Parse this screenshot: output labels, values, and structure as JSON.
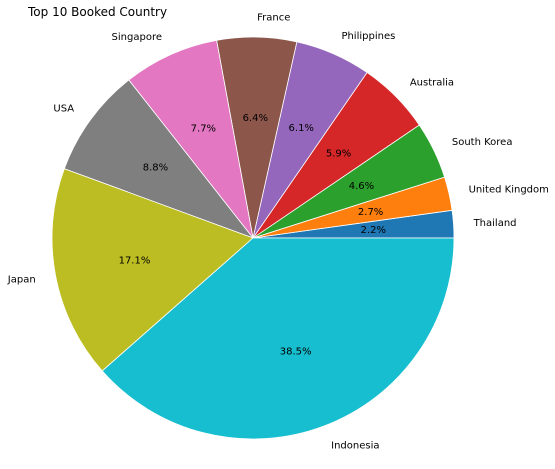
{
  "chart_data": {
    "type": "pie",
    "title": "Top 10 Booked Country",
    "slices": [
      {
        "label": "Thailand",
        "value": 2.2,
        "pct_label": "2.2%",
        "color": "#1f77b4"
      },
      {
        "label": "United Kingdom",
        "value": 2.7,
        "pct_label": "2.7%",
        "color": "#ff7f0e"
      },
      {
        "label": "South Korea",
        "value": 4.6,
        "pct_label": "4.6%",
        "color": "#2ca02c"
      },
      {
        "label": "Australia",
        "value": 5.9,
        "pct_label": "5.9%",
        "color": "#d62728"
      },
      {
        "label": "Philippines",
        "value": 6.1,
        "pct_label": "6.1%",
        "color": "#9467bd"
      },
      {
        "label": "France",
        "value": 6.4,
        "pct_label": "6.4%",
        "color": "#8c564b"
      },
      {
        "label": "Singapore",
        "value": 7.7,
        "pct_label": "7.7%",
        "color": "#e377c2"
      },
      {
        "label": "USA",
        "value": 8.8,
        "pct_label": "8.8%",
        "color": "#7f7f7f"
      },
      {
        "label": "Japan",
        "value": 17.1,
        "pct_label": "17.1%",
        "color": "#bcbd22"
      },
      {
        "label": "Indonesia",
        "value": 38.5,
        "pct_label": "38.5%",
        "color": "#17becf"
      }
    ],
    "start_angle": "east",
    "direction": "counterclockwise"
  }
}
